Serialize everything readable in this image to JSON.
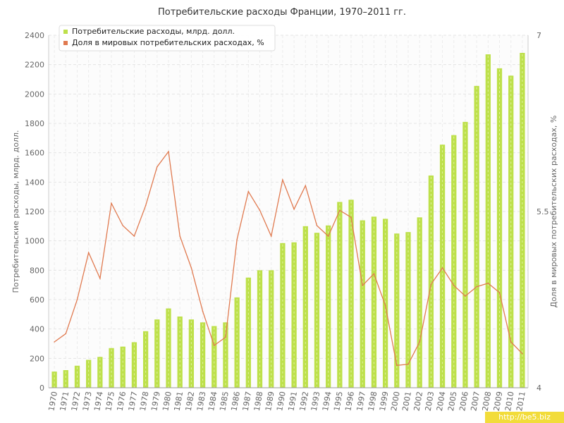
{
  "chart_data": {
    "type": "bar+line",
    "title": "Потребительские расходы Франции, 1970–2011 гг.",
    "ylabel": "Потребительские расходы, млрд. долл.",
    "y2label": "Доля в мировых потребительских расходах, %",
    "ylim": [
      0,
      2400
    ],
    "y2lim": [
      4,
      7
    ],
    "yticks": [
      0,
      200,
      400,
      600,
      800,
      1000,
      1200,
      1400,
      1600,
      1800,
      2000,
      2200,
      2400
    ],
    "y2ticks": [
      4,
      5.5,
      7
    ],
    "y2tick_labels": [
      "4",
      "5.5",
      "7"
    ],
    "grid": true,
    "legend_position": "top-left",
    "categories": [
      "1970",
      "1971",
      "1972",
      "1973",
      "1974",
      "1975",
      "1976",
      "1977",
      "1978",
      "1979",
      "1980",
      "1981",
      "1982",
      "1983",
      "1984",
      "1985",
      "1986",
      "1987",
      "1988",
      "1989",
      "1990",
      "1991",
      "1992",
      "1993",
      "1994",
      "1995",
      "1996",
      "1997",
      "1998",
      "1999",
      "2000",
      "2001",
      "2002",
      "2003",
      "2004",
      "2005",
      "2006",
      "2007",
      "2008",
      "2009",
      "2010",
      "2011"
    ],
    "series": [
      {
        "name": "Потребительские расходы, млрд. долл.",
        "kind": "bar",
        "axis": "left",
        "color": "#bde04a",
        "values": [
          110,
          120,
          150,
          190,
          210,
          270,
          280,
          310,
          385,
          465,
          540,
          485,
          465,
          445,
          420,
          445,
          615,
          750,
          800,
          800,
          985,
          990,
          1100,
          1055,
          1105,
          1265,
          1280,
          1140,
          1165,
          1150,
          1050,
          1060,
          1160,
          1445,
          1655,
          1720,
          1810,
          2055,
          2270,
          2175,
          2125,
          2280
        ]
      },
      {
        "name": "Доля в мировых потребительских расходах, %",
        "kind": "line",
        "axis": "right",
        "color": "#e07a50",
        "values": [
          4.39,
          4.46,
          4.75,
          5.15,
          4.93,
          5.57,
          5.38,
          5.29,
          5.55,
          5.88,
          6.01,
          5.29,
          5.02,
          4.65,
          4.36,
          4.43,
          5.26,
          5.67,
          5.51,
          5.29,
          5.77,
          5.52,
          5.72,
          5.38,
          5.29,
          5.51,
          5.45,
          4.87,
          4.97,
          4.7,
          4.19,
          4.2,
          4.39,
          4.88,
          5.02,
          4.87,
          4.78,
          4.86,
          4.89,
          4.81,
          4.39,
          4.29
        ]
      }
    ]
  },
  "watermark": "http://be5.biz"
}
